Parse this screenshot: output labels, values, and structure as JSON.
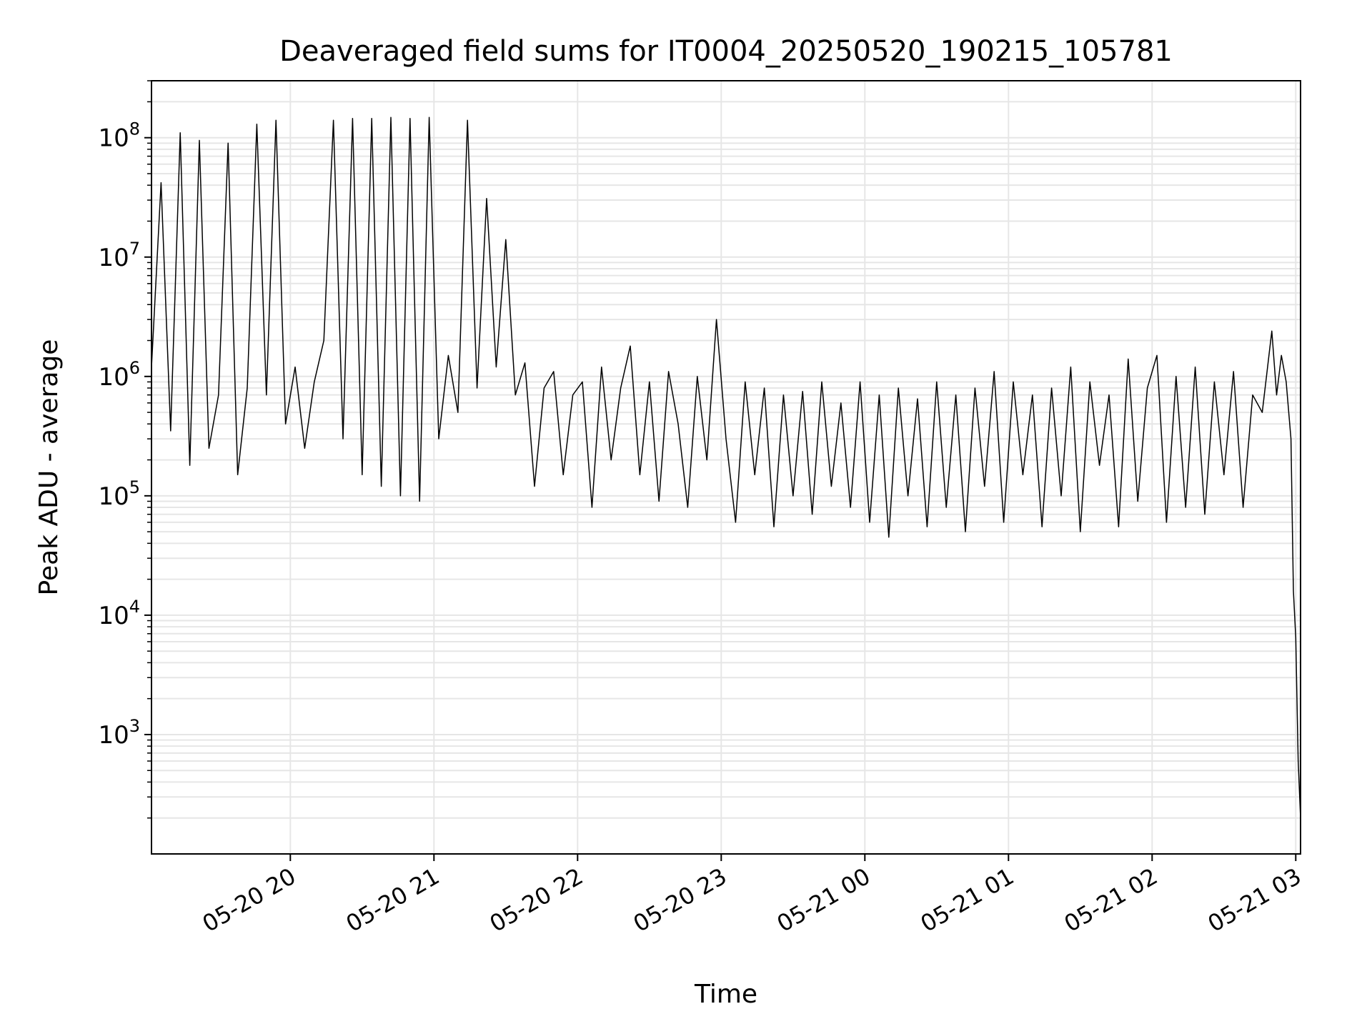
{
  "chart_data": {
    "type": "line",
    "title": "Deaveraged field sums for IT0004_20250520_190215_105781",
    "xlabel": "Time",
    "ylabel": "Peak ADU - average",
    "yscale": "log",
    "grid": true,
    "grid_minor": true,
    "x_range": [
      "2025-05-20T19:02:00",
      "2025-05-21T03:02:00"
    ],
    "ylim": [
      100,
      300000000
    ],
    "x_ticks": [
      "2025-05-20T20:00",
      "2025-05-20T21:00",
      "2025-05-20T22:00",
      "2025-05-20T23:00",
      "2025-05-21T00:00",
      "2025-05-21T01:00",
      "2025-05-21T02:00",
      "2025-05-21T03:00"
    ],
    "x_tick_labels": [
      "05-20 20",
      "05-20 21",
      "05-20 22",
      "05-20 23",
      "05-21 00",
      "05-21 01",
      "05-21 02",
      "05-21 03"
    ],
    "y_ticks": [
      1000,
      10000,
      100000,
      1000000,
      10000000,
      100000000
    ],
    "y_tick_labels": [
      {
        "base": "10",
        "exp": "3"
      },
      {
        "base": "10",
        "exp": "4"
      },
      {
        "base": "10",
        "exp": "5"
      },
      {
        "base": "10",
        "exp": "6"
      },
      {
        "base": "10",
        "exp": "7"
      },
      {
        "base": "10",
        "exp": "8"
      }
    ],
    "series": [
      {
        "color": "#000000",
        "x": [
          "2025-05-20T19:02:00",
          "2025-05-20T19:06:00",
          "2025-05-20T19:10:00",
          "2025-05-20T19:14:00",
          "2025-05-20T19:18:00",
          "2025-05-20T19:22:00",
          "2025-05-20T19:26:00",
          "2025-05-20T19:30:00",
          "2025-05-20T19:34:00",
          "2025-05-20T19:38:00",
          "2025-05-20T19:42:00",
          "2025-05-20T19:46:00",
          "2025-05-20T19:50:00",
          "2025-05-20T19:54:00",
          "2025-05-20T19:58:00",
          "2025-05-20T20:02:00",
          "2025-05-20T20:06:00",
          "2025-05-20T20:10:00",
          "2025-05-20T20:14:00",
          "2025-05-20T20:18:00",
          "2025-05-20T20:22:00",
          "2025-05-20T20:26:00",
          "2025-05-20T20:30:00",
          "2025-05-20T20:34:00",
          "2025-05-20T20:38:00",
          "2025-05-20T20:42:00",
          "2025-05-20T20:46:00",
          "2025-05-20T20:50:00",
          "2025-05-20T20:54:00",
          "2025-05-20T20:58:00",
          "2025-05-20T21:02:00",
          "2025-05-20T21:06:00",
          "2025-05-20T21:10:00",
          "2025-05-20T21:14:00",
          "2025-05-20T21:18:00",
          "2025-05-20T21:22:00",
          "2025-05-20T21:26:00",
          "2025-05-20T21:30:00",
          "2025-05-20T21:34:00",
          "2025-05-20T21:38:00",
          "2025-05-20T21:42:00",
          "2025-05-20T21:46:00",
          "2025-05-20T21:50:00",
          "2025-05-20T21:54:00",
          "2025-05-20T21:58:00",
          "2025-05-20T22:02:00",
          "2025-05-20T22:06:00",
          "2025-05-20T22:10:00",
          "2025-05-20T22:14:00",
          "2025-05-20T22:18:00",
          "2025-05-20T22:22:00",
          "2025-05-20T22:26:00",
          "2025-05-20T22:30:00",
          "2025-05-20T22:34:00",
          "2025-05-20T22:38:00",
          "2025-05-20T22:42:00",
          "2025-05-20T22:46:00",
          "2025-05-20T22:50:00",
          "2025-05-20T22:54:00",
          "2025-05-20T22:58:00",
          "2025-05-20T23:02:00",
          "2025-05-20T23:06:00",
          "2025-05-20T23:10:00",
          "2025-05-20T23:14:00",
          "2025-05-20T23:18:00",
          "2025-05-20T23:22:00",
          "2025-05-20T23:26:00",
          "2025-05-20T23:30:00",
          "2025-05-20T23:34:00",
          "2025-05-20T23:38:00",
          "2025-05-20T23:42:00",
          "2025-05-20T23:46:00",
          "2025-05-20T23:50:00",
          "2025-05-20T23:54:00",
          "2025-05-20T23:58:00",
          "2025-05-21T00:02:00",
          "2025-05-21T00:06:00",
          "2025-05-21T00:10:00",
          "2025-05-21T00:14:00",
          "2025-05-21T00:18:00",
          "2025-05-21T00:22:00",
          "2025-05-21T00:26:00",
          "2025-05-21T00:30:00",
          "2025-05-21T00:34:00",
          "2025-05-21T00:38:00",
          "2025-05-21T00:42:00",
          "2025-05-21T00:46:00",
          "2025-05-21T00:50:00",
          "2025-05-21T00:54:00",
          "2025-05-21T00:58:00",
          "2025-05-21T01:02:00",
          "2025-05-21T01:06:00",
          "2025-05-21T01:10:00",
          "2025-05-21T01:14:00",
          "2025-05-21T01:18:00",
          "2025-05-21T01:22:00",
          "2025-05-21T01:26:00",
          "2025-05-21T01:30:00",
          "2025-05-21T01:34:00",
          "2025-05-21T01:38:00",
          "2025-05-21T01:42:00",
          "2025-05-21T01:46:00",
          "2025-05-21T01:50:00",
          "2025-05-21T01:54:00",
          "2025-05-21T01:58:00",
          "2025-05-21T02:02:00",
          "2025-05-21T02:06:00",
          "2025-05-21T02:10:00",
          "2025-05-21T02:14:00",
          "2025-05-21T02:18:00",
          "2025-05-21T02:22:00",
          "2025-05-21T02:26:00",
          "2025-05-21T02:30:00",
          "2025-05-21T02:34:00",
          "2025-05-21T02:38:00",
          "2025-05-21T02:42:00",
          "2025-05-21T02:46:00",
          "2025-05-21T02:50:00",
          "2025-05-21T02:52:00",
          "2025-05-21T02:54:00",
          "2025-05-21T02:56:00",
          "2025-05-21T02:58:00",
          "2025-05-21T02:59:00",
          "2025-05-21T03:00:00",
          "2025-05-21T03:01:00",
          "2025-05-21T03:02:00"
        ],
        "y": [
          1200000,
          42000000,
          350000,
          110000000,
          180000,
          95000000,
          250000,
          700000,
          90000000,
          150000,
          800000,
          130000000,
          700000,
          140000000,
          400000,
          1200000,
          250000,
          900000,
          2000000,
          140000000,
          300000,
          145000000,
          150000,
          145000000,
          120000,
          148000000,
          100000,
          145000000,
          90000,
          148000000,
          300000,
          1500000,
          500000,
          140000000,
          800000,
          31000000,
          1200000,
          14000000,
          700000,
          1300000,
          120000,
          800000,
          1100000,
          150000,
          700000,
          900000,
          80000,
          1200000,
          200000,
          800000,
          1800000,
          150000,
          900000,
          90000,
          1100000,
          400000,
          80000,
          1000000,
          200000,
          3000000,
          300000,
          60000,
          900000,
          150000,
          800000,
          55000,
          700000,
          100000,
          750000,
          70000,
          900000,
          120000,
          600000,
          80000,
          900000,
          60000,
          700000,
          45000,
          800000,
          100000,
          650000,
          55000,
          900000,
          80000,
          700000,
          50000,
          800000,
          120000,
          1100000,
          60000,
          900000,
          150000,
          700000,
          55000,
          800000,
          100000,
          1200000,
          50000,
          900000,
          180000,
          700000,
          55000,
          1400000,
          90000,
          800000,
          1500000,
          60000,
          1000000,
          80000,
          1200000,
          70000,
          900000,
          150000,
          1100000,
          80000,
          700000,
          500000,
          2400000,
          700000,
          1500000,
          900000,
          300000,
          16000,
          6500,
          600,
          200
        ]
      }
    ]
  }
}
